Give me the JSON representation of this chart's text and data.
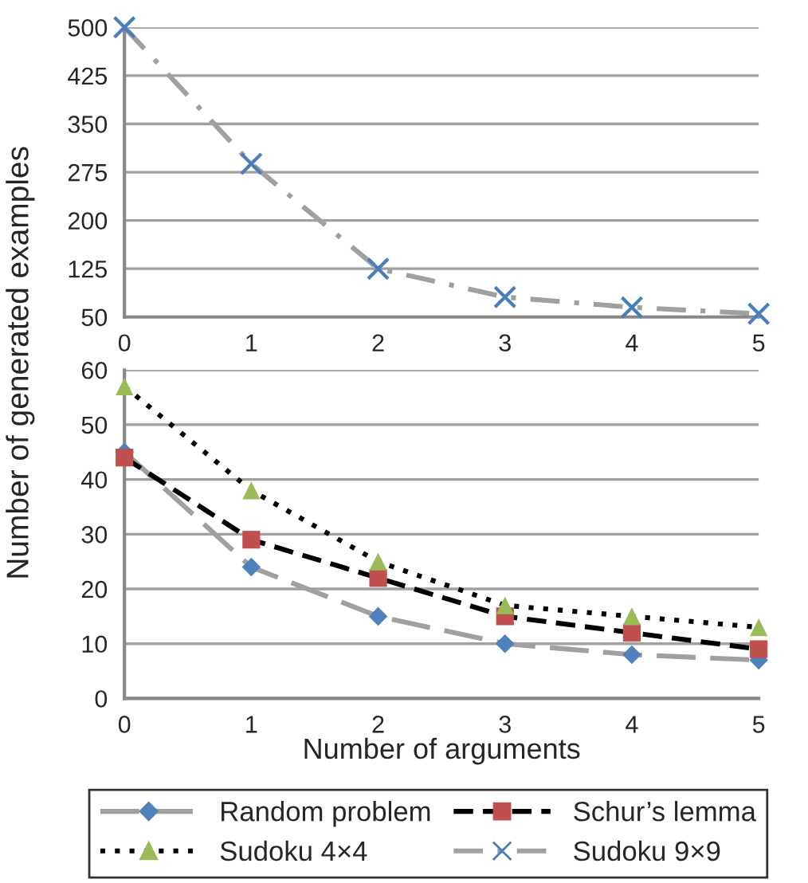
{
  "chart_data": [
    {
      "type": "line",
      "ylabel": "Number of generated examples",
      "x": [
        0,
        1,
        2,
        3,
        4,
        5
      ],
      "xlim": [
        0,
        5
      ],
      "xticks": [
        0,
        1,
        2,
        3,
        4,
        5
      ],
      "ylim": [
        50,
        500
      ],
      "yticks": [
        50,
        125,
        200,
        275,
        350,
        425,
        500
      ],
      "grid": "y",
      "legend": "bottom",
      "series": [
        {
          "name": "Sudoku 9×9",
          "color": "#4a7ebb",
          "marker": "cross",
          "line_style": "dashdot",
          "values": [
            500,
            288,
            125,
            81,
            65,
            55
          ]
        }
      ]
    },
    {
      "type": "line",
      "xlabel": "Number of arguments",
      "x": [
        0,
        1,
        2,
        3,
        4,
        5
      ],
      "xlim": [
        0,
        5
      ],
      "xticks": [
        0,
        1,
        2,
        3,
        4,
        5
      ],
      "ylim": [
        0,
        60
      ],
      "yticks": [
        0,
        10,
        20,
        30,
        40,
        50,
        60
      ],
      "grid": "y",
      "legend": "bottom",
      "series": [
        {
          "name": "Random problem",
          "color": "#4f81bd",
          "marker": "diamond",
          "line_style": "longdash",
          "values": [
            45,
            24,
            15,
            10,
            8,
            7
          ]
        },
        {
          "name": "Schur’s lemma",
          "color": "#c0504d",
          "marker": "square",
          "line_style": "dashed",
          "values": [
            44,
            29,
            22,
            15,
            12,
            9
          ]
        },
        {
          "name": "Sudoku 4×4",
          "color": "#9bbb59",
          "marker": "triangle",
          "line_style": "dotted",
          "values": [
            57,
            38,
            25,
            17,
            15,
            13
          ]
        }
      ]
    }
  ]
}
